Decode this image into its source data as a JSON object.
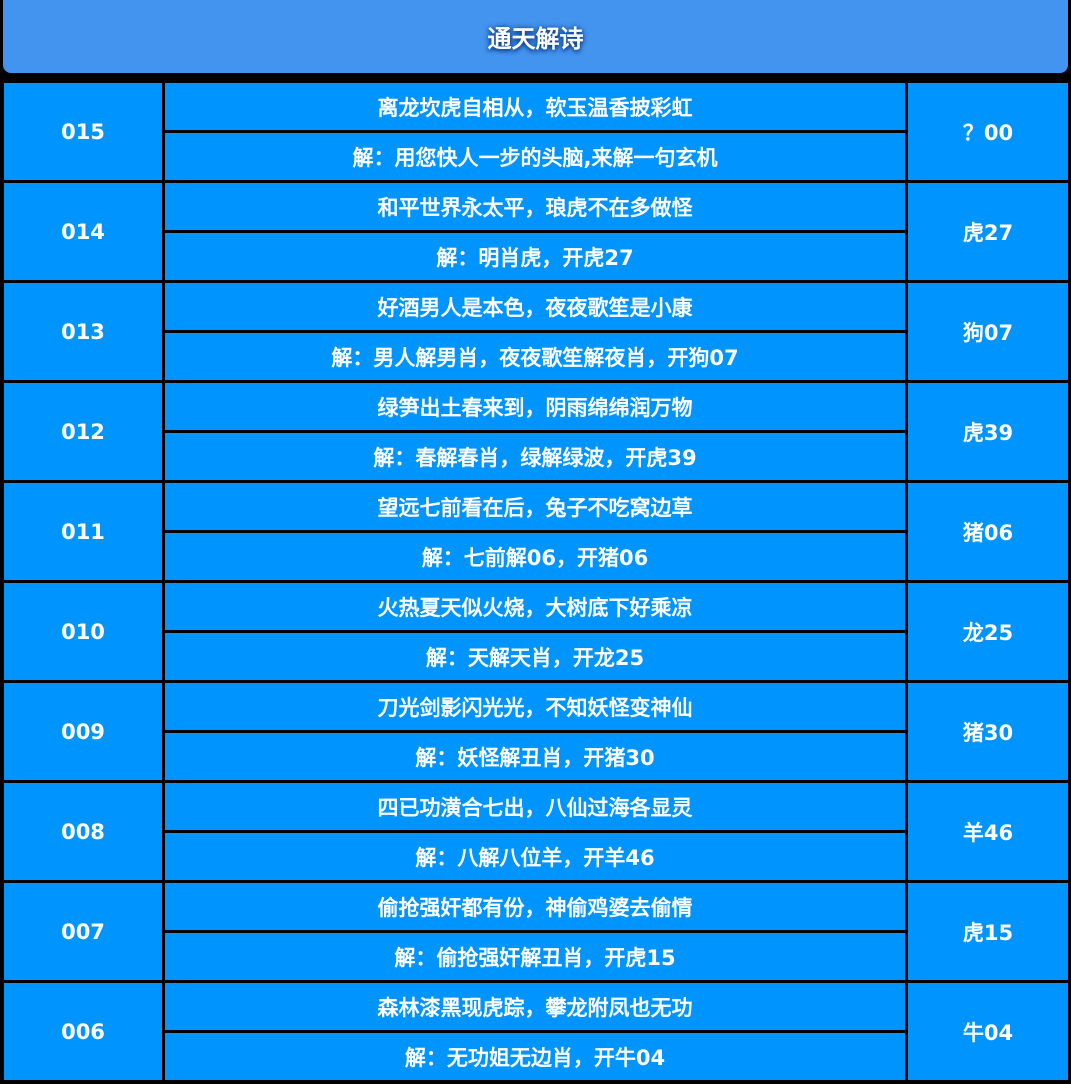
{
  "header": {
    "title": "通天解诗"
  },
  "colors": {
    "header_bg": "#4394ee",
    "cell_bg": "#0094ff",
    "border": "#000000",
    "text": "#ffffff"
  },
  "rows": [
    {
      "issue": "015",
      "poem": "离龙坎虎自相从，软玉温香披彩虹",
      "solution": "解：用您快人一步的头脑,来解一句玄机",
      "result": "？00"
    },
    {
      "issue": "014",
      "poem": "和平世界永太平，琅虎不在多做怪",
      "solution": "解：明肖虎，开虎27",
      "result": "虎27"
    },
    {
      "issue": "013",
      "poem": "好酒男人是本色，夜夜歌笙是小康",
      "solution": "解：男人解男肖，夜夜歌笙解夜肖，开狗07",
      "result": "狗07"
    },
    {
      "issue": "012",
      "poem": "绿笋出土春来到，阴雨绵绵润万物",
      "solution": "解：春解春肖，绿解绿波，开虎39",
      "result": "虎39"
    },
    {
      "issue": "011",
      "poem": "望远七前看在后，兔子不吃窝边草",
      "solution": "解：七前解06，开猪06",
      "result": "猪06"
    },
    {
      "issue": "010",
      "poem": "火热夏天似火烧，大树底下好乘凉",
      "solution": "解：天解天肖，开龙25",
      "result": "龙25"
    },
    {
      "issue": "009",
      "poem": "刀光剑影闪光光，不知妖怪变神仙",
      "solution": "解：妖怪解丑肖，开猪30",
      "result": "猪30"
    },
    {
      "issue": "008",
      "poem": "四已功潢合七出，八仙过海各显灵",
      "solution": "解：八解八位羊，开羊46",
      "result": "羊46"
    },
    {
      "issue": "007",
      "poem": "偷抢强奸都有份，神偷鸡婆去偷情",
      "solution": "解：偷抢强奸解丑肖，开虎15",
      "result": "虎15"
    },
    {
      "issue": "006",
      "poem": "森林漆黑现虎踪，攀龙附凤也无功",
      "solution": "解：无功姐无边肖，开牛04",
      "result": "牛04"
    }
  ]
}
